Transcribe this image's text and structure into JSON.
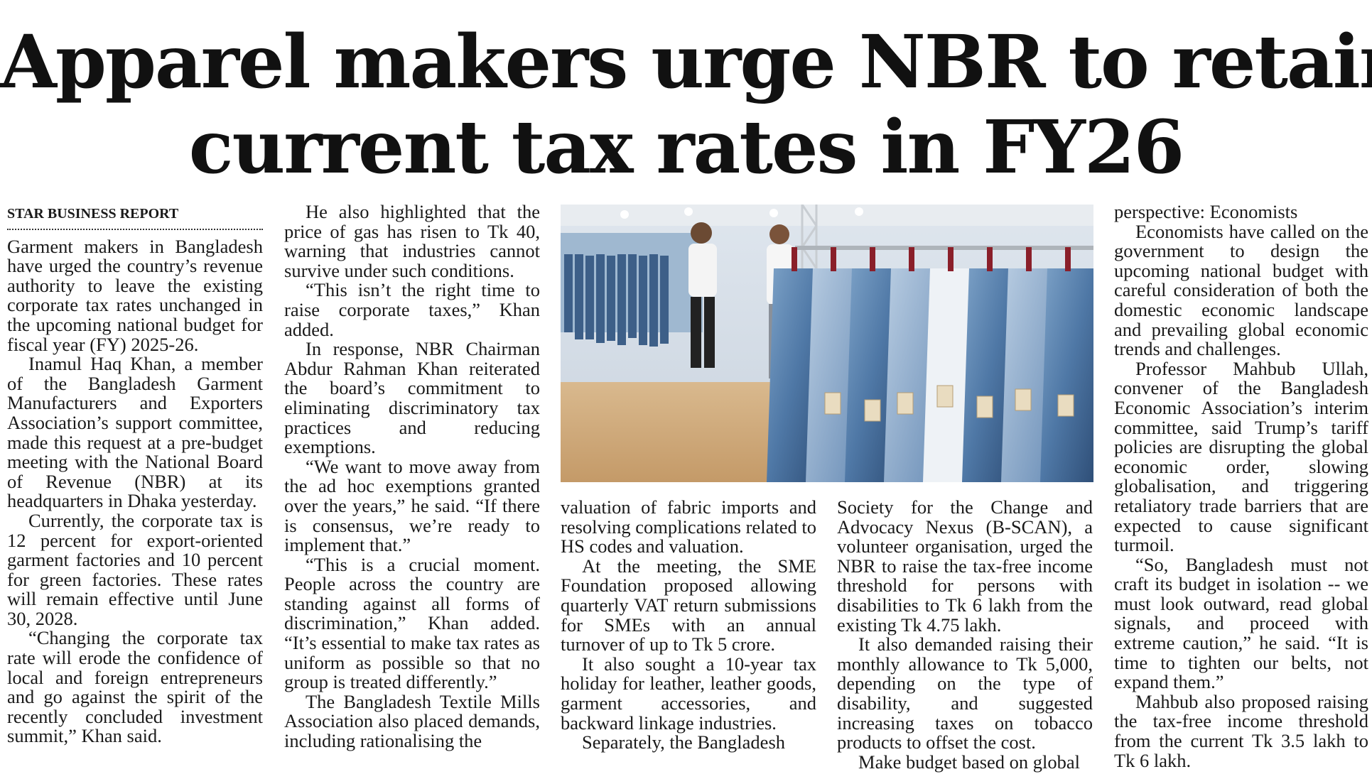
{
  "headline": {
    "line1": "Apparel makers urge NBR to retain",
    "line2": "current tax rates in FY26"
  },
  "byline": "STAR BUSINESS REPORT",
  "photo": {
    "description_icon": "jeans-display-photo"
  },
  "columns": {
    "col1": [
      "Garment makers in Bangladesh have urged the country’s revenue authority to leave the existing corporate tax rates unchanged in the upcoming national budget for fiscal year (FY) 2025-26.",
      "Inamul Haq Khan, a member of the Bangladesh Garment Manufacturers and Exporters Association’s support committee, made this request at a pre-budget meeting with the National Board of Revenue (NBR) at its headquarters in Dhaka yesterday.",
      "Currently, the corporate tax is 12 percent for export-oriented garment factories and 10 percent for green factories. These rates will remain effective until June 30, 2028.",
      "“Changing the corporate tax rate will erode the confidence of local and foreign entrepreneurs and go against the spirit of the recently concluded investment summit,” Khan said."
    ],
    "col2": [
      "He also highlighted that the price of gas has risen to Tk 40, warning that industries cannot survive under such conditions.",
      "“This isn’t the right time to raise corporate taxes,” Khan added.",
      "In response, NBR Chairman Abdur Rahman Khan reiterated the board’s commitment to eliminating discriminatory tax practices and reducing exemptions.",
      "“We want to move away from the ad hoc exemptions granted over the years,” he said. “If there is consensus, we’re ready to implement that.”",
      "“This is a crucial moment. People across the country are standing against all forms of discrimination,” Khan added. “It’s essential to make tax rates as uniform as possible so that no group is treated differently.”",
      "The Bangladesh Textile Mills Association also placed demands, including rationalising the"
    ],
    "col3_continued": "valuation of fabric imports and resolving complications related to HS codes and valuation.",
    "col3": [
      "At the meeting, the SME Foundation proposed allowing quarterly VAT return submissions for SMEs with an annual turnover of up to Tk 5 crore.",
      "It also sought a 10-year tax holiday for leather, leather goods, garment accessories, and backward linkage industries.",
      "Separately, the Bangladesh"
    ],
    "col4_continued": "Society for the Change and Advocacy Nexus (B-SCAN), a volunteer organisation, urged the NBR to raise the tax-free income threshold for persons with disabilities to Tk 6 lakh from the existing Tk 4.75 lakh.",
    "col4": [
      "It also demanded raising their monthly allowance to Tk 5,000, depending on the type of disability, and suggested increasing taxes on tobacco products to offset the cost."
    ],
    "col4_subhead": "Make budget based on global",
    "col5_subhead_cont": "perspective: Economists",
    "col5": [
      "Economists have called on the government to design the upcoming national budget with careful consideration of both the domestic economic landscape and prevailing global economic trends and challenges.",
      "Professor Mahbub Ullah, convener of the Bangladesh Economic Association’s interim committee, said Trump’s tariff policies are disrupting the global economic order, slowing globalisation, and triggering retaliatory trade barriers that are expected to cause significant turmoil.",
      "“So, Bangladesh must not craft its budget in isolation -- we must look outward, read global signals, and proceed with extreme caution,” he said. “It is time to tighten our belts, not expand them.”",
      "Mahbub also proposed raising the tax-free income threshold from the current Tk 3.5 lakh to Tk 6 lakh."
    ]
  }
}
